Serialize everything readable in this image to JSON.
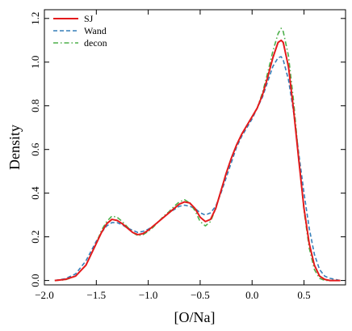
{
  "chart_data": {
    "type": "line",
    "title": "",
    "xlabel": "[O/Na]",
    "ylabel": "Density",
    "xlim": [
      -2.0,
      0.9
    ],
    "ylim": [
      -0.02,
      1.24
    ],
    "xticks": [
      -2.0,
      -1.5,
      -1.0,
      -0.5,
      0.0,
      0.5
    ],
    "xtick_labels": [
      "−2.0",
      "−1.5",
      "−1.0",
      "−0.5",
      "0.0",
      "0.5"
    ],
    "yticks": [
      0.0,
      0.2,
      0.4,
      0.6,
      0.8,
      1.0,
      1.2
    ],
    "ytick_labels": [
      "0.0",
      "0.2",
      "0.4",
      "0.6",
      "0.8",
      "1.0",
      "1.2"
    ],
    "grid": false,
    "legend_position": "top-left",
    "series": [
      {
        "name": "SJ",
        "color": "#e41a1c",
        "dash": "solid",
        "x": [
          -1.9,
          -1.8,
          -1.7,
          -1.6,
          -1.5,
          -1.45,
          -1.4,
          -1.35,
          -1.3,
          -1.25,
          -1.2,
          -1.15,
          -1.1,
          -1.05,
          -1.0,
          -0.95,
          -0.9,
          -0.85,
          -0.8,
          -0.75,
          -0.7,
          -0.65,
          -0.6,
          -0.55,
          -0.5,
          -0.45,
          -0.4,
          -0.35,
          -0.3,
          -0.25,
          -0.2,
          -0.15,
          -0.1,
          -0.05,
          0.0,
          0.05,
          0.1,
          0.15,
          0.2,
          0.25,
          0.28,
          0.3,
          0.35,
          0.4,
          0.45,
          0.5,
          0.55,
          0.6,
          0.65,
          0.7,
          0.75,
          0.8,
          0.85
        ],
        "y": [
          0.0,
          0.005,
          0.02,
          0.07,
          0.17,
          0.22,
          0.26,
          0.28,
          0.275,
          0.26,
          0.24,
          0.22,
          0.21,
          0.215,
          0.23,
          0.25,
          0.27,
          0.29,
          0.31,
          0.33,
          0.35,
          0.36,
          0.355,
          0.33,
          0.29,
          0.27,
          0.28,
          0.33,
          0.41,
          0.49,
          0.56,
          0.62,
          0.67,
          0.71,
          0.75,
          0.79,
          0.85,
          0.93,
          1.02,
          1.09,
          1.1,
          1.09,
          0.98,
          0.78,
          0.55,
          0.33,
          0.17,
          0.07,
          0.02,
          0.005,
          0.0,
          0.0,
          0.0
        ]
      },
      {
        "name": "Wand",
        "color": "#377eb8",
        "dash": "dashed",
        "x": [
          -1.9,
          -1.8,
          -1.7,
          -1.6,
          -1.5,
          -1.45,
          -1.4,
          -1.35,
          -1.3,
          -1.25,
          -1.2,
          -1.15,
          -1.1,
          -1.05,
          -1.0,
          -0.95,
          -0.9,
          -0.85,
          -0.8,
          -0.75,
          -0.7,
          -0.65,
          -0.6,
          -0.55,
          -0.5,
          -0.45,
          -0.4,
          -0.35,
          -0.3,
          -0.25,
          -0.2,
          -0.15,
          -0.1,
          -0.05,
          0.0,
          0.05,
          0.1,
          0.15,
          0.2,
          0.25,
          0.28,
          0.3,
          0.35,
          0.4,
          0.45,
          0.5,
          0.55,
          0.6,
          0.65,
          0.7,
          0.75,
          0.8,
          0.85
        ],
        "y": [
          0.0,
          0.008,
          0.03,
          0.09,
          0.18,
          0.22,
          0.25,
          0.265,
          0.265,
          0.255,
          0.24,
          0.23,
          0.22,
          0.225,
          0.235,
          0.25,
          0.27,
          0.29,
          0.31,
          0.325,
          0.34,
          0.345,
          0.34,
          0.33,
          0.31,
          0.3,
          0.31,
          0.34,
          0.4,
          0.47,
          0.54,
          0.61,
          0.66,
          0.7,
          0.74,
          0.79,
          0.84,
          0.91,
          0.98,
          1.02,
          1.025,
          1.01,
          0.92,
          0.77,
          0.58,
          0.4,
          0.24,
          0.12,
          0.05,
          0.02,
          0.01,
          0.005,
          0.0
        ]
      },
      {
        "name": "decon",
        "color": "#4daf4a",
        "dash": "dotdash",
        "x": [
          -1.9,
          -1.8,
          -1.7,
          -1.6,
          -1.5,
          -1.45,
          -1.4,
          -1.35,
          -1.3,
          -1.25,
          -1.2,
          -1.15,
          -1.1,
          -1.05,
          -1.0,
          -0.95,
          -0.9,
          -0.85,
          -0.8,
          -0.75,
          -0.7,
          -0.65,
          -0.6,
          -0.55,
          -0.5,
          -0.45,
          -0.4,
          -0.35,
          -0.3,
          -0.25,
          -0.2,
          -0.15,
          -0.1,
          -0.05,
          0.0,
          0.05,
          0.1,
          0.15,
          0.2,
          0.25,
          0.28,
          0.3,
          0.35,
          0.4,
          0.45,
          0.5,
          0.55,
          0.6,
          0.65,
          0.7,
          0.75,
          0.8,
          0.85
        ],
        "y": [
          0.0,
          0.003,
          0.02,
          0.07,
          0.17,
          0.23,
          0.27,
          0.295,
          0.29,
          0.27,
          0.245,
          0.22,
          0.205,
          0.21,
          0.225,
          0.245,
          0.27,
          0.295,
          0.315,
          0.34,
          0.36,
          0.37,
          0.355,
          0.32,
          0.27,
          0.25,
          0.27,
          0.33,
          0.41,
          0.49,
          0.56,
          0.62,
          0.67,
          0.71,
          0.75,
          0.79,
          0.86,
          0.95,
          1.05,
          1.13,
          1.155,
          1.14,
          1.03,
          0.82,
          0.56,
          0.32,
          0.15,
          0.05,
          0.01,
          0.0,
          0.0,
          0.0,
          0.0
        ]
      }
    ]
  }
}
